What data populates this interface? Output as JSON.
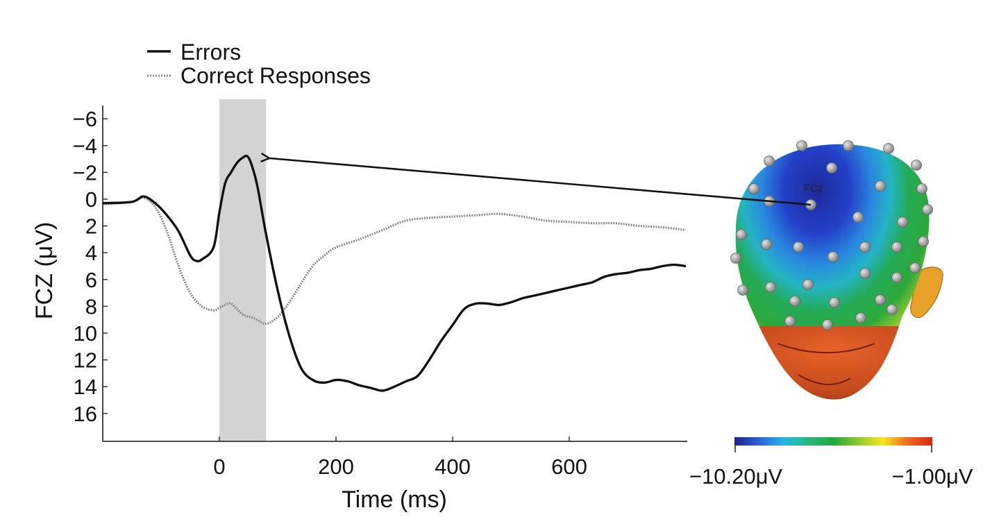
{
  "chart_data": {
    "type": "line",
    "xlabel": "Time (ms)",
    "ylabel": "FCZ (μV)",
    "xlim": [
      -200,
      800
    ],
    "ylim": [
      18,
      -7
    ],
    "y_axis_inverted": true,
    "xticks": [
      0,
      200,
      400,
      600
    ],
    "yticks": [
      -6,
      -4,
      -2,
      0,
      2,
      4,
      6,
      8,
      10,
      12,
      14,
      16
    ],
    "ytick_labels": [
      "−6",
      "−4",
      "−2",
      "0",
      "2",
      "4",
      "6",
      "8",
      "10",
      "12",
      "14",
      "16"
    ],
    "legend_position": "top-left",
    "shaded_window": {
      "x_start": 0,
      "x_end": 80,
      "color": "#d3d3d3"
    },
    "series": [
      {
        "name": "Errors",
        "style": "solid",
        "color": "#111111",
        "x": [
          -200,
          -150,
          -130,
          -110,
          -90,
          -70,
          -50,
          -40,
          -30,
          -10,
          0,
          10,
          20,
          30,
          40,
          48,
          55,
          65,
          80,
          100,
          120,
          140,
          160,
          180,
          200,
          220,
          240,
          260,
          280,
          300,
          320,
          340,
          360,
          380,
          400,
          420,
          440,
          460,
          480,
          500,
          520,
          540,
          560,
          580,
          600,
          620,
          640,
          660,
          680,
          700,
          720,
          740,
          760,
          780,
          800
        ],
        "y": [
          0.3,
          0.2,
          -0.2,
          0.3,
          1.2,
          2.4,
          4.2,
          4.6,
          4.5,
          3.6,
          1.0,
          -1.2,
          -2.0,
          -2.7,
          -3.1,
          -3.2,
          -2.6,
          -1.0,
          2.6,
          6.8,
          10.2,
          12.6,
          13.5,
          13.7,
          13.5,
          13.6,
          13.9,
          14.1,
          14.3,
          14.0,
          13.6,
          13.2,
          12.0,
          10.6,
          9.4,
          8.2,
          7.8,
          7.8,
          7.9,
          7.7,
          7.4,
          7.2,
          7.0,
          6.8,
          6.6,
          6.4,
          6.2,
          5.8,
          5.6,
          5.5,
          5.3,
          5.2,
          5.0,
          4.9,
          5.0
        ]
      },
      {
        "name": "Correct Responses",
        "style": "dotted",
        "color": "#888888",
        "x": [
          -200,
          -150,
          -130,
          -110,
          -90,
          -70,
          -50,
          -30,
          -10,
          0,
          10,
          20,
          40,
          60,
          80,
          100,
          120,
          140,
          160,
          180,
          200,
          240,
          280,
          320,
          360,
          400,
          440,
          480,
          520,
          560,
          600,
          640,
          680,
          720,
          760,
          800
        ],
        "y": [
          0.4,
          0.2,
          -0.1,
          0.6,
          2.4,
          5.0,
          7.0,
          8.0,
          8.3,
          8.1,
          7.9,
          7.8,
          8.6,
          8.9,
          9.3,
          8.8,
          7.7,
          6.3,
          5.0,
          4.2,
          3.6,
          3.0,
          2.3,
          1.6,
          1.4,
          1.3,
          1.2,
          1.1,
          1.3,
          1.6,
          1.7,
          1.8,
          1.8,
          2.0,
          2.1,
          2.3
        ]
      }
    ],
    "annotations": [
      {
        "text": "FCz",
        "type": "electrode-label"
      }
    ],
    "colorbar": {
      "min_label": "−10.20μV",
      "max_label": "−1.00μV",
      "colormap": "jet",
      "stops": [
        "#1c1f8c",
        "#2a63d8",
        "#24b7e6",
        "#27b77b",
        "#23a83a",
        "#8fc82f",
        "#f2e81f",
        "#f06a1e",
        "#d62418"
      ]
    }
  }
}
